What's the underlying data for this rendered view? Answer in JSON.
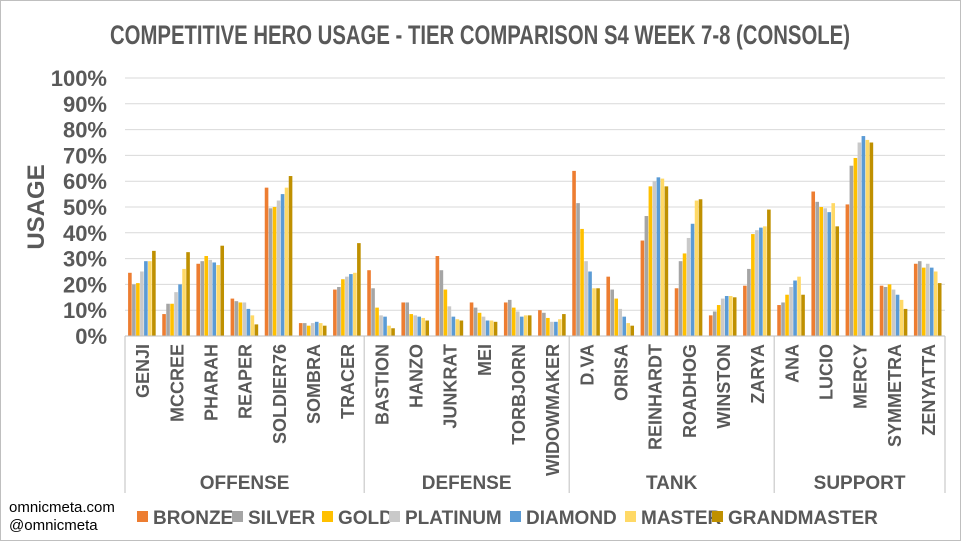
{
  "chart_data": {
    "type": "bar",
    "title": "COMPETITIVE HERO USAGE - TIER COMPARISON S4 WEEK 7-8 (CONSOLE)",
    "xlabel": "",
    "ylabel": "USAGE",
    "ylim": [
      0,
      100
    ],
    "yticks": [
      "0%",
      "10%",
      "20%",
      "30%",
      "40%",
      "50%",
      "60%",
      "70%",
      "80%",
      "90%",
      "100%"
    ],
    "legend_position": "bottom",
    "groups": [
      {
        "name": "OFFENSE",
        "categories": [
          "GENJI",
          "MCCREE",
          "PHARAH",
          "REAPER",
          "SOLDIER76",
          "SOMBRA",
          "TRACER"
        ]
      },
      {
        "name": "DEFENSE",
        "categories": [
          "BASTION",
          "HANZO",
          "JUNKRAT",
          "MEI",
          "TORBJORN",
          "WIDOWMAKER"
        ]
      },
      {
        "name": "TANK",
        "categories": [
          "D.VA",
          "ORISA",
          "REINHARDT",
          "ROADHOG",
          "WINSTON",
          "ZARYA"
        ]
      },
      {
        "name": "SUPPORT",
        "categories": [
          "ANA",
          "LUCIO",
          "MERCY",
          "SYMMETRA",
          "ZENYATTA"
        ]
      }
    ],
    "categories": [
      "GENJI",
      "MCCREE",
      "PHARAH",
      "REAPER",
      "SOLDIER76",
      "SOMBRA",
      "TRACER",
      "BASTION",
      "HANZO",
      "JUNKRAT",
      "MEI",
      "TORBJORN",
      "WIDOWMAKER",
      "D.VA",
      "ORISA",
      "REINHARDT",
      "ROADHOG",
      "WINSTON",
      "ZARYA",
      "ANA",
      "LUCIO",
      "MERCY",
      "SYMMETRA",
      "ZENYATTA"
    ],
    "series": [
      {
        "name": "BRONZE",
        "color": "#ED7D31",
        "values": [
          24.5,
          8.5,
          28,
          14.5,
          57.5,
          5,
          18,
          25.5,
          13,
          31,
          13,
          13,
          10,
          64,
          23,
          37,
          18.5,
          8,
          19.5,
          12,
          56,
          51,
          19.5,
          28
        ]
      },
      {
        "name": "SILVER",
        "color": "#A5A5A5",
        "values": [
          20,
          12.5,
          29,
          13.5,
          49.5,
          5,
          19,
          18.5,
          13,
          25.5,
          11,
          14,
          9,
          51.5,
          18,
          46.5,
          29,
          9.5,
          26,
          13,
          52,
          66,
          19,
          29
        ]
      },
      {
        "name": "GOLD",
        "color": "#FFC000",
        "values": [
          20.5,
          12.5,
          31,
          13,
          50,
          4,
          22,
          11,
          8.5,
          18,
          9,
          11,
          7,
          41.5,
          14.5,
          58,
          32,
          12,
          39.5,
          16,
          50,
          69,
          20,
          26.5
        ]
      },
      {
        "name": "PLATINUM",
        "color": "#C9C9C9",
        "values": [
          25,
          17,
          29.5,
          13,
          52.5,
          5,
          23,
          8,
          8,
          11.5,
          7.5,
          9.5,
          5.5,
          29,
          10.5,
          60,
          38,
          14.5,
          41,
          19,
          49.5,
          75,
          18,
          28
        ]
      },
      {
        "name": "DIAMOND",
        "color": "#5B9BD5",
        "values": [
          29,
          20,
          28.5,
          10.5,
          55,
          5.5,
          24,
          7.5,
          7.5,
          7.5,
          6,
          7.5,
          5.5,
          25,
          7.5,
          61.5,
          43.5,
          15.5,
          42,
          21.5,
          48,
          77.5,
          16,
          26.5
        ]
      },
      {
        "name": "MASTER",
        "color": "#FFD966",
        "values": [
          29,
          26,
          27.5,
          8,
          57.5,
          5,
          24.5,
          4,
          7,
          6.5,
          6,
          8,
          6.5,
          18.5,
          5,
          61,
          52.5,
          15.5,
          42.5,
          23,
          51.5,
          76,
          14,
          25
        ]
      },
      {
        "name": "GRANDMASTER",
        "color": "#BF9000",
        "values": [
          33,
          32.5,
          35,
          4.5,
          62,
          4,
          36,
          3,
          6,
          6,
          5.5,
          8,
          8.5,
          18.5,
          4,
          58,
          53,
          15,
          49,
          16,
          42.5,
          75,
          10.5,
          20.5
        ]
      }
    ]
  },
  "credit": {
    "site": "omnicmeta.com",
    "handle": "@omnicmeta"
  }
}
